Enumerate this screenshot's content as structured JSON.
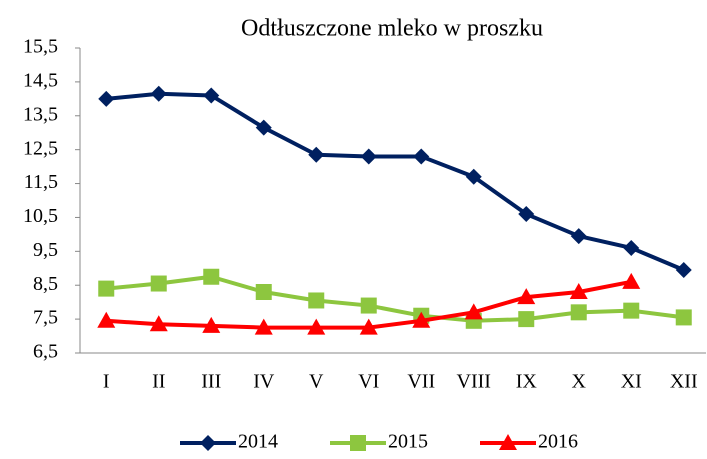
{
  "chart_data": {
    "type": "line",
    "title": "Odtłuszczone mleko w proszku",
    "categories": [
      "I",
      "II",
      "III",
      "IV",
      "V",
      "VI",
      "VII",
      "VIII",
      "IX",
      "X",
      "XI",
      "XII"
    ],
    "series": [
      {
        "name": "2014",
        "color": "#002060",
        "marker": "diamond",
        "values": [
          14.0,
          14.15,
          14.1,
          13.15,
          12.35,
          12.3,
          12.3,
          11.7,
          10.6,
          9.95,
          9.6,
          8.95
        ]
      },
      {
        "name": "2015",
        "color": "#8dc63f",
        "marker": "square",
        "values": [
          8.4,
          8.55,
          8.75,
          8.3,
          8.05,
          7.9,
          7.6,
          7.45,
          7.5,
          7.7,
          7.75,
          7.55
        ]
      },
      {
        "name": "2016",
        "color": "#ff0000",
        "marker": "triangle",
        "values": [
          7.45,
          7.35,
          7.3,
          7.25,
          7.25,
          7.25,
          7.45,
          7.7,
          8.15,
          8.3,
          8.6,
          null
        ]
      }
    ],
    "ylim": [
      6.5,
      15.5
    ],
    "yticks": [
      {
        "value": 6.5,
        "label": "6,5"
      },
      {
        "value": 7.5,
        "label": "7,5"
      },
      {
        "value": 8.5,
        "label": "8,5"
      },
      {
        "value": 9.5,
        "label": "9,5"
      },
      {
        "value": 10.5,
        "label": "10,5"
      },
      {
        "value": 11.5,
        "label": "11,5"
      },
      {
        "value": 12.5,
        "label": "12,5"
      },
      {
        "value": 13.5,
        "label": "13,5"
      },
      {
        "value": 14.5,
        "label": "14,5"
      },
      {
        "value": 15.5,
        "label": "15,5"
      }
    ],
    "grid": false,
    "legend": "bottom"
  }
}
